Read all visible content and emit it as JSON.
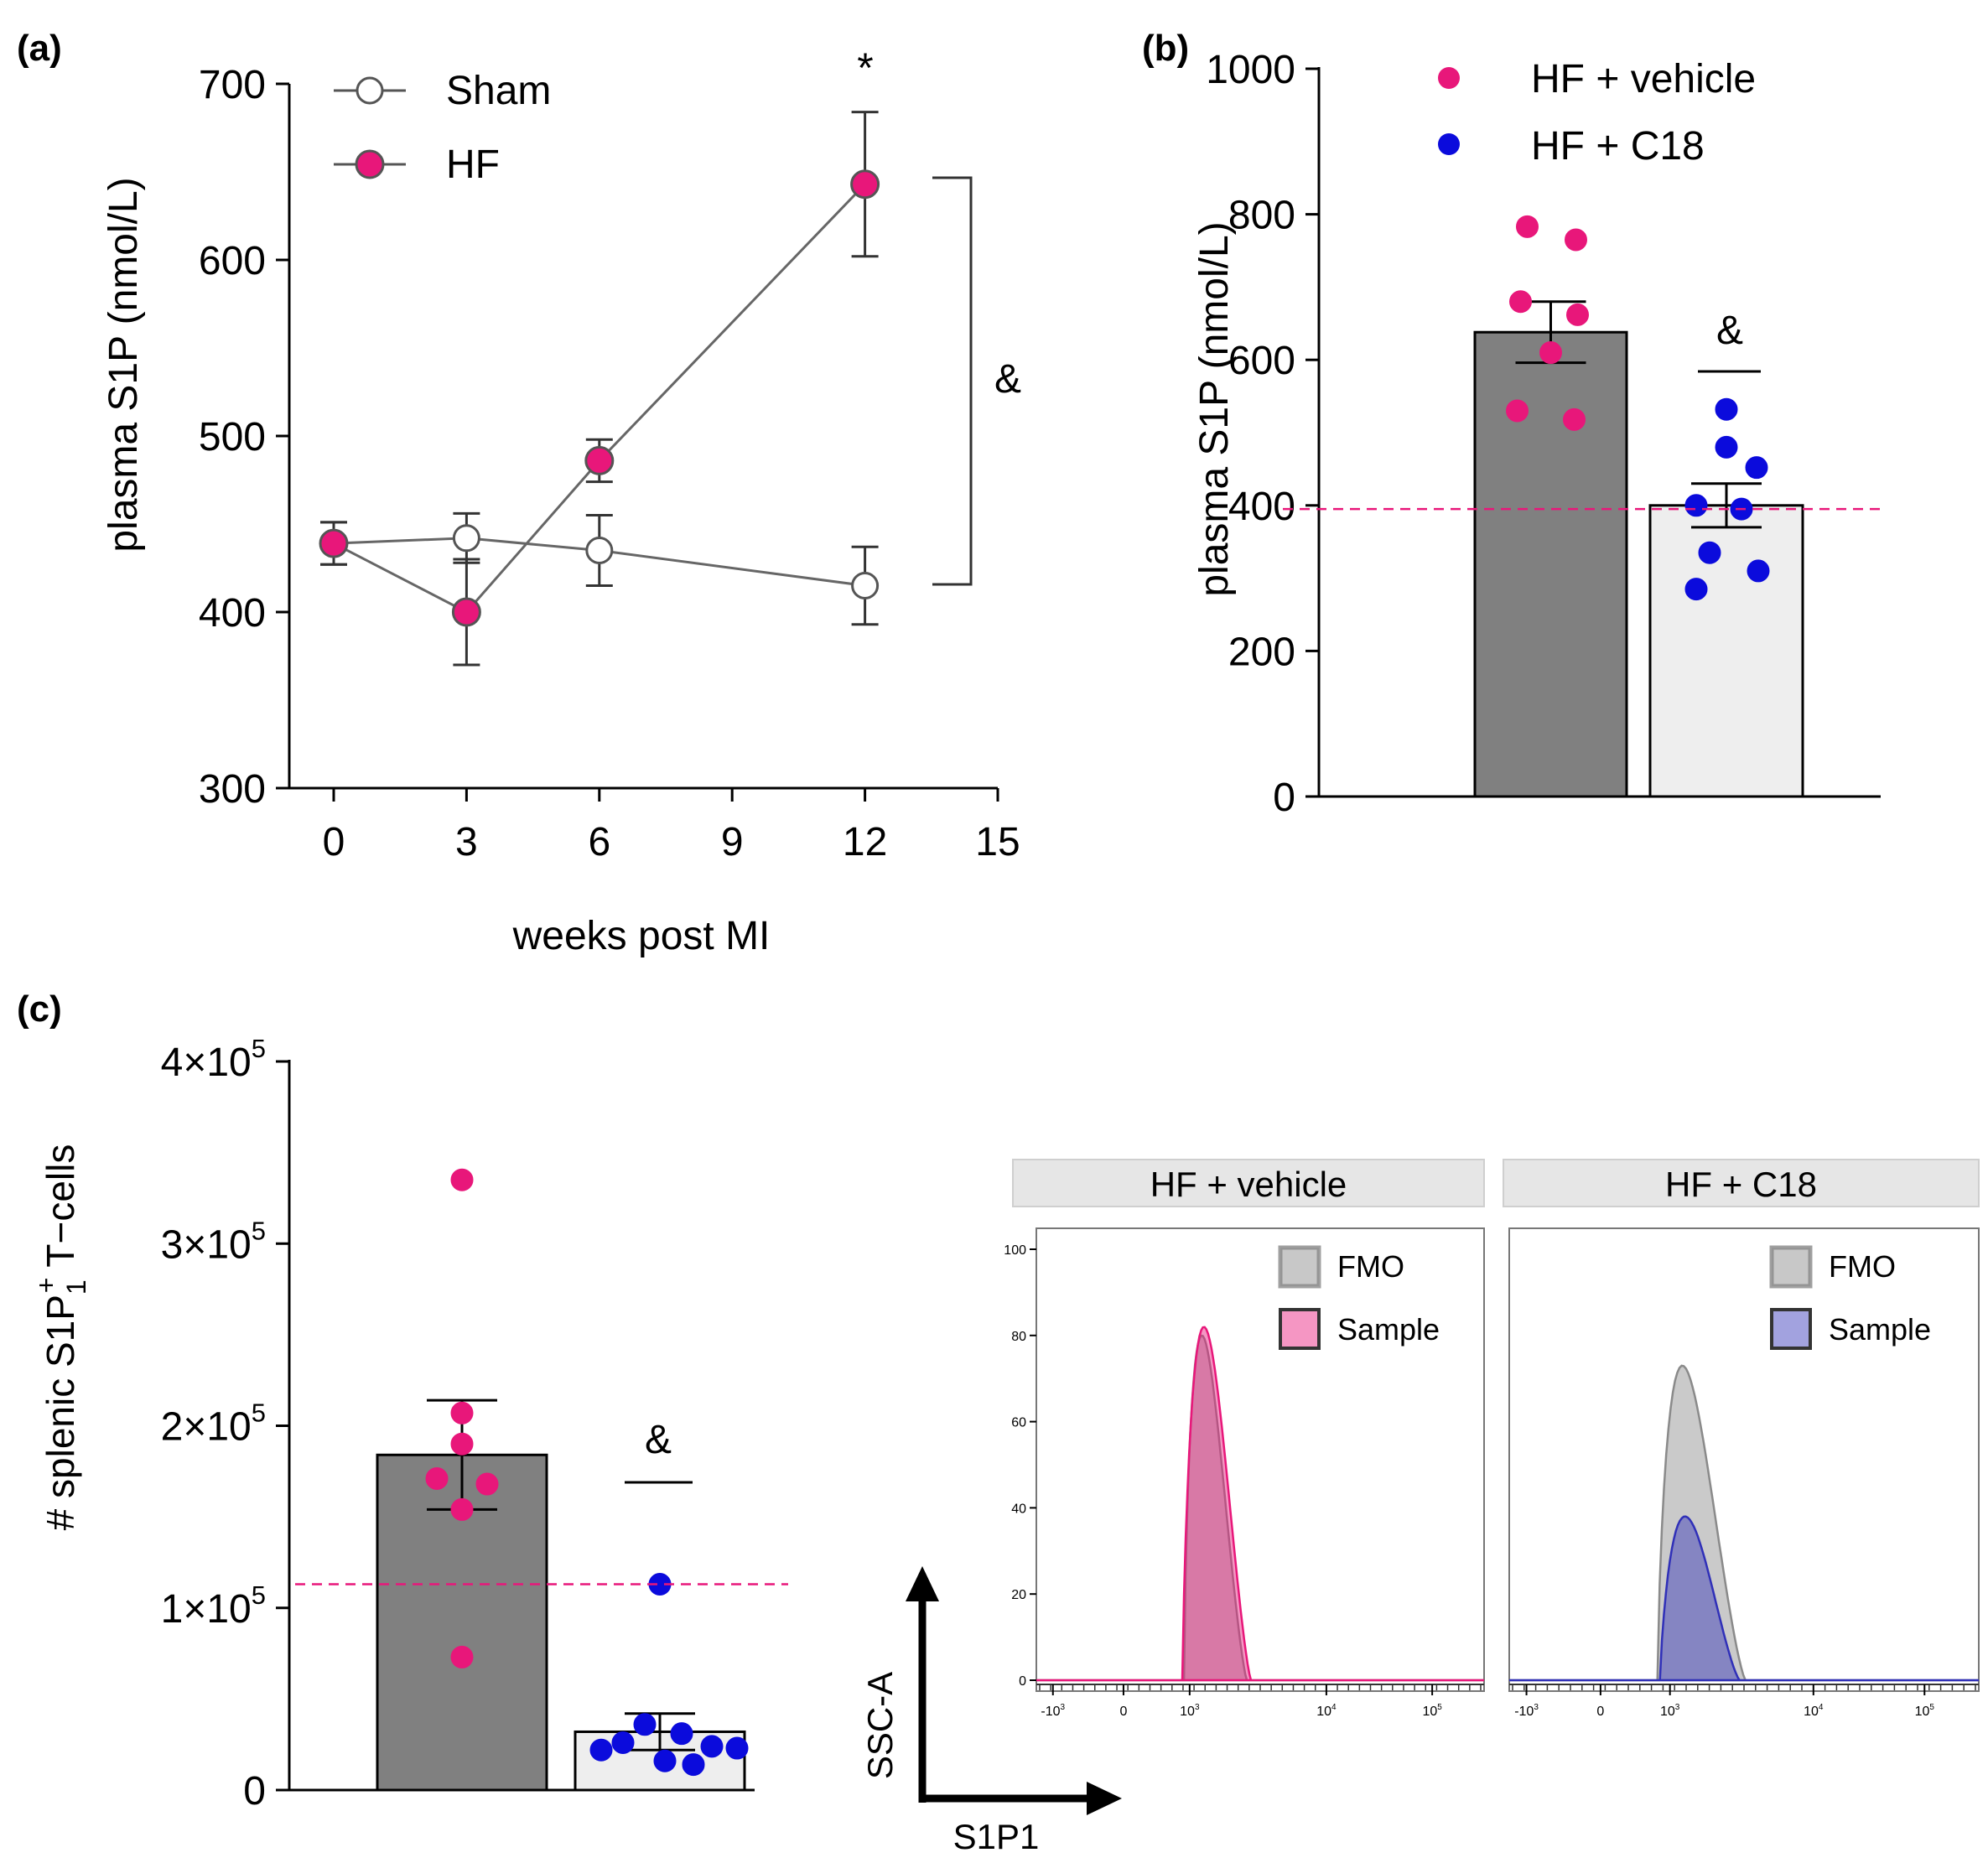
{
  "chart_data": [
    {
      "panel": "(a)",
      "type": "line",
      "ylabel": "plasma S1P (nmol/L)",
      "xlabel": "weeks post MI",
      "xlim": [
        0,
        15
      ],
      "ylim": [
        300,
        700
      ],
      "xticks": [
        0,
        3,
        6,
        9,
        12,
        15
      ],
      "yticks": [
        300,
        400,
        500,
        600,
        700
      ],
      "legend_position": "top-left",
      "series": [
        {
          "name": "Sham",
          "x": [
            0,
            3,
            6,
            12
          ],
          "values": [
            439,
            442,
            435,
            415
          ],
          "errors": [
            12,
            14,
            20,
            22
          ],
          "color": "#ffffff"
        },
        {
          "name": "HF",
          "x": [
            0,
            3,
            6,
            12
          ],
          "values": [
            439,
            400,
            486,
            643
          ],
          "errors": [
            12,
            30,
            12,
            41
          ],
          "color": "#e8177a"
        }
      ],
      "annotations": {
        "star": "*",
        "star_x": 12,
        "bracket_label": "&"
      }
    },
    {
      "panel": "(b)",
      "type": "bar",
      "ylabel": "plasma S1P (nmol/L)",
      "ylim": [
        0,
        1000
      ],
      "yticks": [
        0,
        200,
        400,
        600,
        800,
        1000
      ],
      "legend_position": "top-right",
      "reference_line": 395,
      "reference_color": "#e8177a",
      "series": [
        {
          "name": "HF + vehicle",
          "value": 638,
          "sem": 42,
          "color": "#e8177a",
          "bar_color": "#808080",
          "points": [
            783,
            765,
            680,
            662,
            610,
            530,
            518
          ]
        },
        {
          "name": "HF + C18",
          "value": 400,
          "sem": 30,
          "color": "#0b0bdc",
          "bar_color": "#eeeeee",
          "points": [
            532,
            480,
            452,
            400,
            395,
            335,
            310,
            285
          ]
        }
      ],
      "annotations": {
        "sig": "&"
      }
    },
    {
      "panel": "(c)",
      "type": "bar",
      "ylabel_prefix": "# splenic S1P",
      "ylabel_sub": "1",
      "ylabel_sup": "+",
      "ylabel_suffix": " T−cells",
      "ylim": [
        0,
        400000
      ],
      "yticks": [
        {
          "value": 0,
          "base": "0",
          "exp": ""
        },
        {
          "value": 100000,
          "base": "1×10",
          "exp": "5"
        },
        {
          "value": 200000,
          "base": "2×10",
          "exp": "5"
        },
        {
          "value": 300000,
          "base": "3×10",
          "exp": "5"
        },
        {
          "value": 400000,
          "base": "4×10",
          "exp": "5"
        }
      ],
      "reference_line": 113000,
      "reference_color": "#e8177a",
      "series": [
        {
          "name": "HF + vehicle",
          "value": 184000,
          "sem": 30000,
          "color": "#e8177a",
          "bar_color": "#808080",
          "points": [
            335000,
            207000,
            190000,
            171000,
            168000,
            154000,
            73000
          ]
        },
        {
          "name": "HF + C18",
          "value": 32000,
          "sem": 10000,
          "color": "#0b0bdc",
          "bar_color": "#eeeeee",
          "points": [
            113000,
            36000,
            31000,
            26000,
            24000,
            23000,
            22000,
            16000,
            14000
          ]
        }
      ],
      "annotations": {
        "sig": "&"
      }
    },
    {
      "panel": "flow",
      "type": "area",
      "y_axis_label": "SSC-A",
      "x_axis_label": "S1P1",
      "yticks": [
        0,
        20,
        40,
        60,
        80,
        100
      ],
      "xticks": [
        {
          "base": "-10",
          "exp": "3"
        },
        {
          "base": "0",
          "exp": ""
        },
        {
          "base": "10",
          "exp": "3"
        },
        {
          "base": "10",
          "exp": "4"
        },
        {
          "base": "10",
          "exp": "5"
        }
      ],
      "facets": [
        {
          "title": "HF  + vehicle",
          "fmo_label": "FMO",
          "sample_label": "Sample",
          "sample_color": "#e8177a",
          "fmo_peak": 80,
          "sample_peak": 82
        },
        {
          "title": "HF  + C18",
          "fmo_label": "FMO",
          "sample_label": "Sample",
          "sample_color": "#3030b8",
          "fmo_peak": 73,
          "sample_peak": 38
        }
      ]
    }
  ],
  "panel_labels": [
    "(a)",
    "(b)",
    "(c)"
  ]
}
